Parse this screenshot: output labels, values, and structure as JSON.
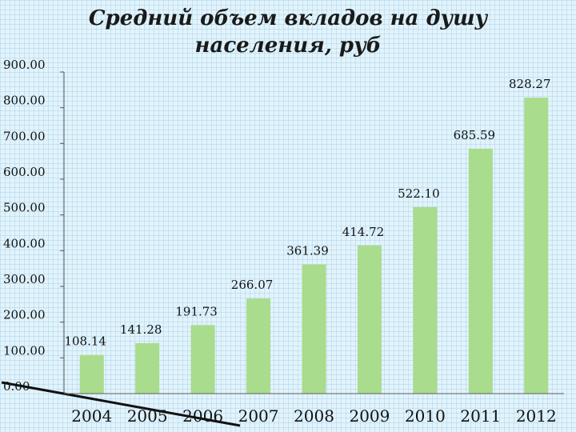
{
  "chart_data": {
    "type": "bar",
    "title": "Средний объем вкладов на душу населения, руб",
    "title_lines": [
      "Средний объем вкладов на душу",
      "населения, руб"
    ],
    "categories": [
      "2004",
      "2005",
      "2006",
      "2007",
      "2008",
      "2009",
      "2010",
      "2011",
      "2012"
    ],
    "values": [
      108.14,
      141.28,
      191.73,
      266.07,
      361.39,
      414.72,
      522.1,
      685.59,
      828.27
    ],
    "value_labels": [
      "108.14",
      "141.28",
      "191.73",
      "266.07",
      "361.39",
      "414.72",
      "522.10",
      "685.59",
      "828.27"
    ],
    "yticks": [
      "0.00",
      "100.00",
      "200.00",
      "300.00",
      "400.00",
      "500.00",
      "600.00",
      "700.00",
      "800.00",
      "900.00"
    ],
    "ylim": [
      0,
      900
    ],
    "grid": false,
    "bar_color": "#a9dc8c"
  }
}
